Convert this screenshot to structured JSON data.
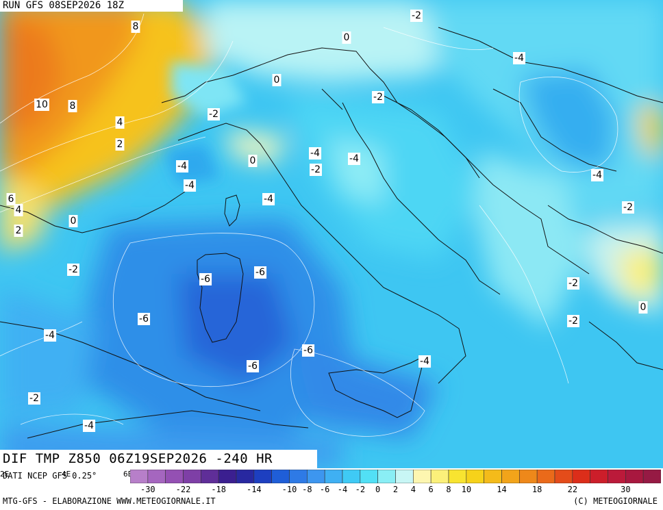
{
  "header": {
    "run": "RUN GFS 08SEP2026 18Z"
  },
  "title": "DIF TMP Z850 06Z19SEP2026 -240 HR",
  "source": "DATI NCEP GFS 0.25°",
  "credit_left": "MTG-GFS - ELABORAZIONE WWW.METEOGIORNALE.IT",
  "credit_right": "(C) METEOGIORNALE",
  "edge_ticks": [
    "2E",
    "4E",
    "6E"
  ],
  "map_labels": [
    {
      "id": "l1",
      "text": "8"
    },
    {
      "id": "l2",
      "text": "-2"
    },
    {
      "id": "l3",
      "text": "0"
    },
    {
      "id": "l4",
      "text": "-4"
    },
    {
      "id": "l5",
      "text": "0"
    },
    {
      "id": "l6",
      "text": "10"
    },
    {
      "id": "l7",
      "text": "8"
    },
    {
      "id": "l8",
      "text": "-2"
    },
    {
      "id": "l9",
      "text": "-2"
    },
    {
      "id": "l10",
      "text": "4"
    },
    {
      "id": "l11",
      "text": "2"
    },
    {
      "id": "l12",
      "text": "-4"
    },
    {
      "id": "l13",
      "text": "-4"
    },
    {
      "id": "l14",
      "text": "0"
    },
    {
      "id": "l15",
      "text": "-2"
    },
    {
      "id": "l16",
      "text": "-4"
    },
    {
      "id": "l17",
      "text": "-4"
    },
    {
      "id": "l18",
      "text": "-4"
    },
    {
      "id": "l19",
      "text": "6"
    },
    {
      "id": "l20",
      "text": "4"
    },
    {
      "id": "l21",
      "text": "2"
    },
    {
      "id": "l22",
      "text": "0"
    },
    {
      "id": "l23",
      "text": "-2"
    },
    {
      "id": "l24",
      "text": "-4"
    },
    {
      "id": "l25",
      "text": "-2"
    },
    {
      "id": "l26",
      "text": "-6"
    },
    {
      "id": "l27",
      "text": "-6"
    },
    {
      "id": "l28",
      "text": "-2"
    },
    {
      "id": "l29",
      "text": "0"
    },
    {
      "id": "l30",
      "text": "-6"
    },
    {
      "id": "l31",
      "text": "-2"
    },
    {
      "id": "l32",
      "text": "-4"
    },
    {
      "id": "l33",
      "text": "-6"
    },
    {
      "id": "l34",
      "text": "-4"
    },
    {
      "id": "l35",
      "text": "-6"
    },
    {
      "id": "l36",
      "text": "-2"
    },
    {
      "id": "l37",
      "text": "-4"
    }
  ],
  "scale": {
    "colors": [
      "#b77fc9",
      "#a566bf",
      "#9450b3",
      "#7e3fa6",
      "#5f2e98",
      "#3b1f90",
      "#2828a0",
      "#1d3fc0",
      "#1f5ed8",
      "#2e7ae6",
      "#3d96ef",
      "#3fb0f3",
      "#3fcaf5",
      "#52e0f5",
      "#8aeef5",
      "#c8f6f5",
      "#fdf6b0",
      "#fbf07a",
      "#f8e430",
      "#f6d21a",
      "#f4bb1a",
      "#f2a41a",
      "#ee881a",
      "#ea6a1a",
      "#e44c1a",
      "#dc2e1a",
      "#cc1e2a",
      "#bb1a3a",
      "#a8183f",
      "#961a44"
    ],
    "labels": [
      "-30",
      "-22",
      "-18",
      "-14",
      "-10",
      "-8",
      "-6",
      "-4",
      "-2",
      "0",
      "2",
      "4",
      "6",
      "8",
      "10",
      "14",
      "18",
      "22",
      "30"
    ]
  }
}
